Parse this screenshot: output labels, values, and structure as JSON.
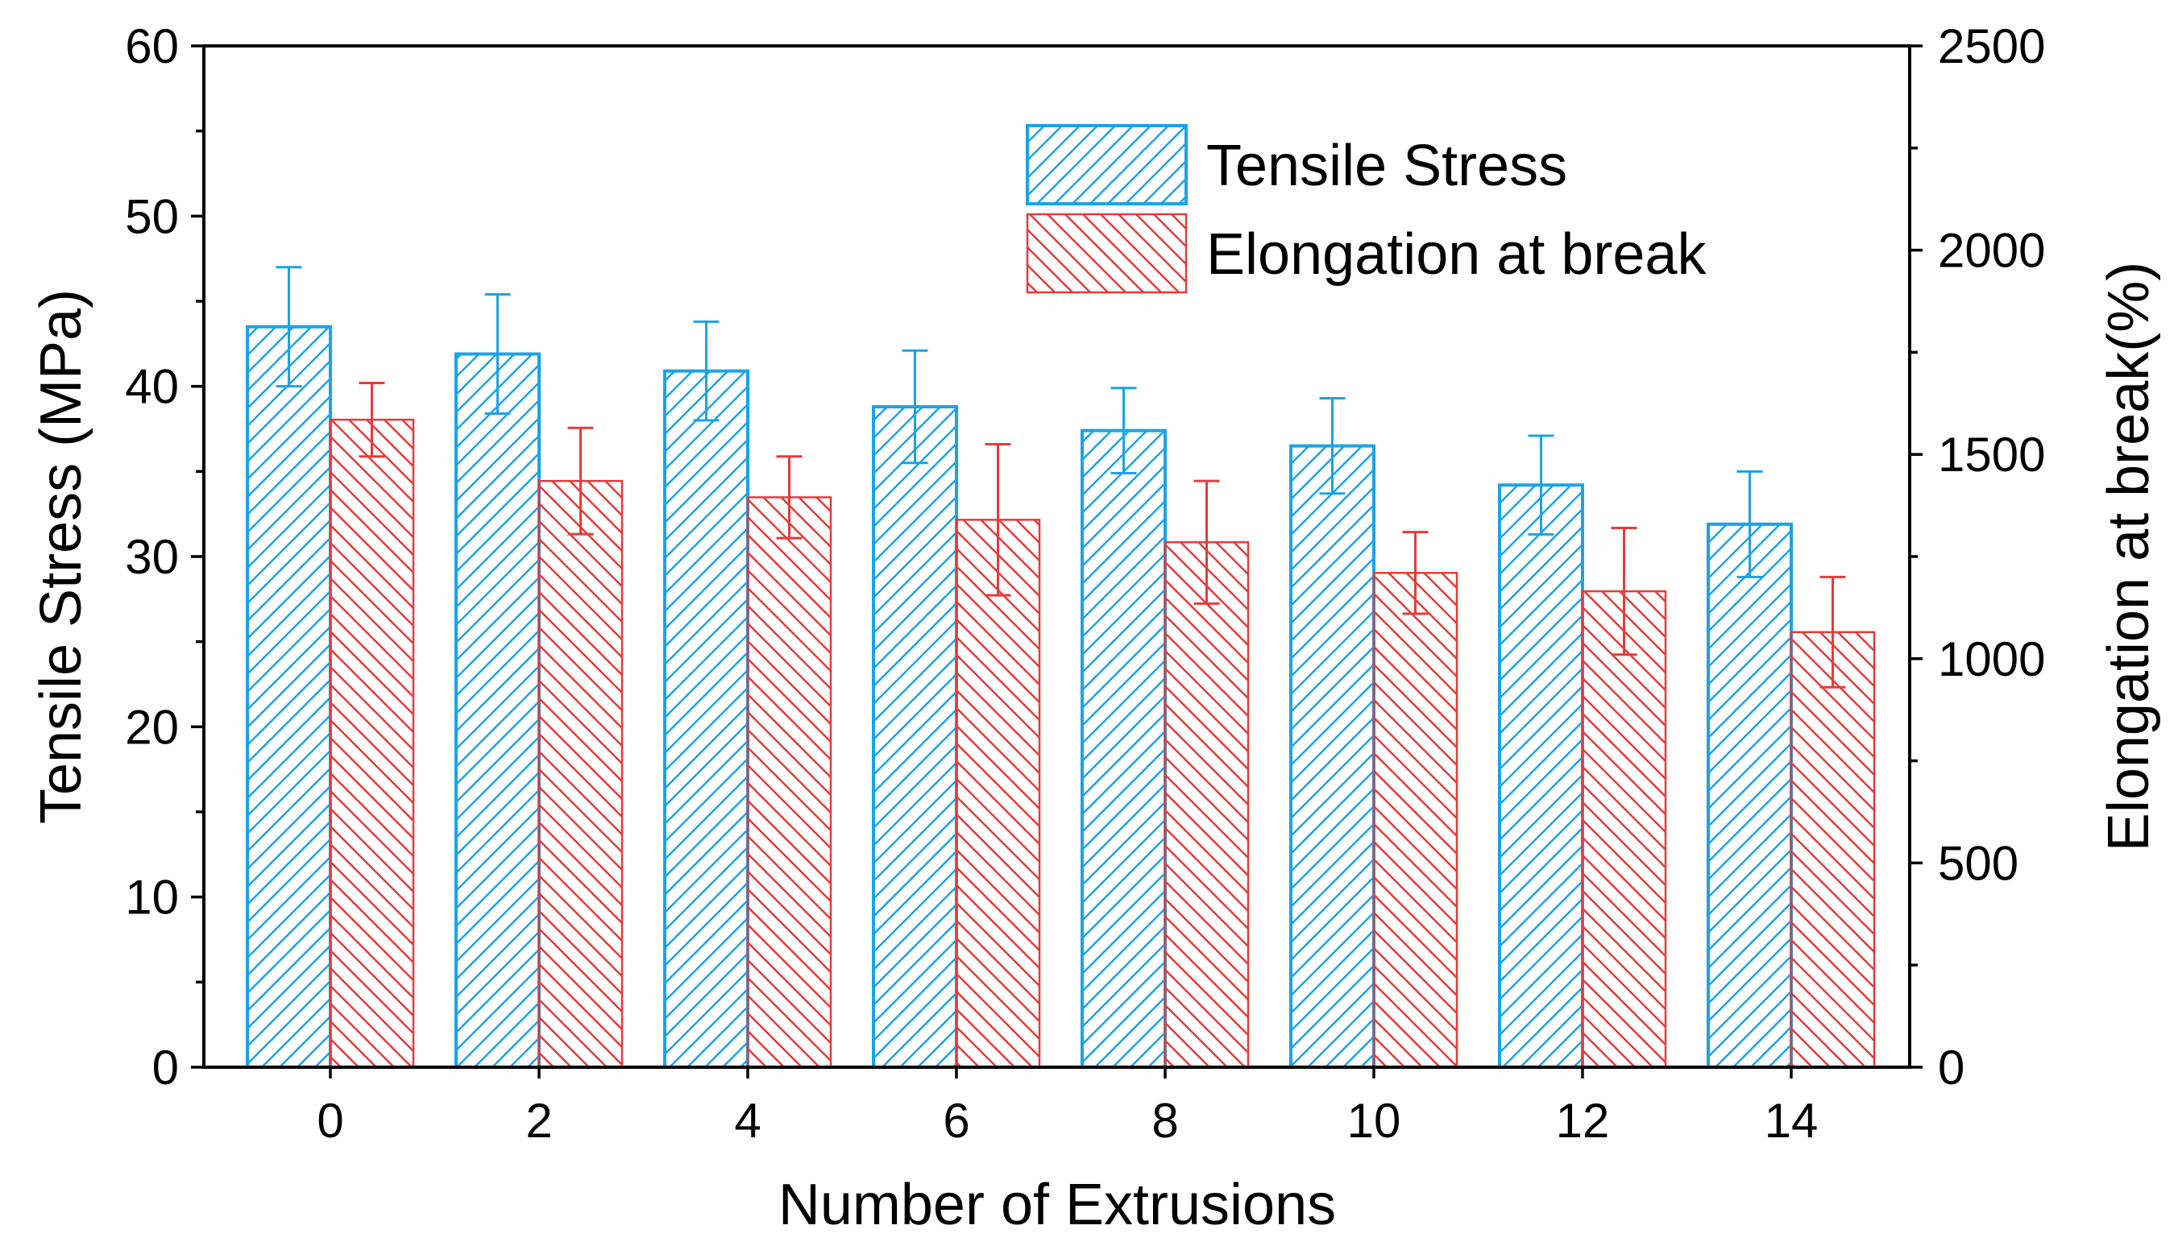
{
  "chart_data": {
    "type": "bar",
    "xlabel": "Number of Extrusions",
    "ylabel_left": "Tensile Stress (MPa)",
    "ylabel_right": "Elongation at break(%)",
    "ylim_left": [
      0,
      60
    ],
    "ylim_right": [
      0,
      2500
    ],
    "yticks_left": [
      "0",
      "10",
      "20",
      "30",
      "40",
      "50",
      "60"
    ],
    "yticks_right": [
      "0",
      "500",
      "1000",
      "1500",
      "2000",
      "2500"
    ],
    "categories": [
      "0",
      "2",
      "4",
      "6",
      "8",
      "10",
      "12",
      "14"
    ],
    "legend_position": "top-right",
    "series": [
      {
        "name": "Tensile Stress",
        "axis": "left",
        "color": "#1aa3e8",
        "values": [
          43.5,
          41.9,
          40.9,
          38.8,
          37.4,
          36.5,
          34.2,
          31.9
        ],
        "errors": [
          3.5,
          3.5,
          2.9,
          3.3,
          2.5,
          2.8,
          2.9,
          3.1
        ]
      },
      {
        "name": "Elongation at break",
        "axis": "right",
        "color": "#e83a3a",
        "values": [
          1585,
          1435,
          1395,
          1340,
          1285,
          1210,
          1165,
          1065
        ],
        "errors": [
          90,
          130,
          100,
          185,
          150,
          100,
          155,
          135
        ]
      }
    ]
  }
}
